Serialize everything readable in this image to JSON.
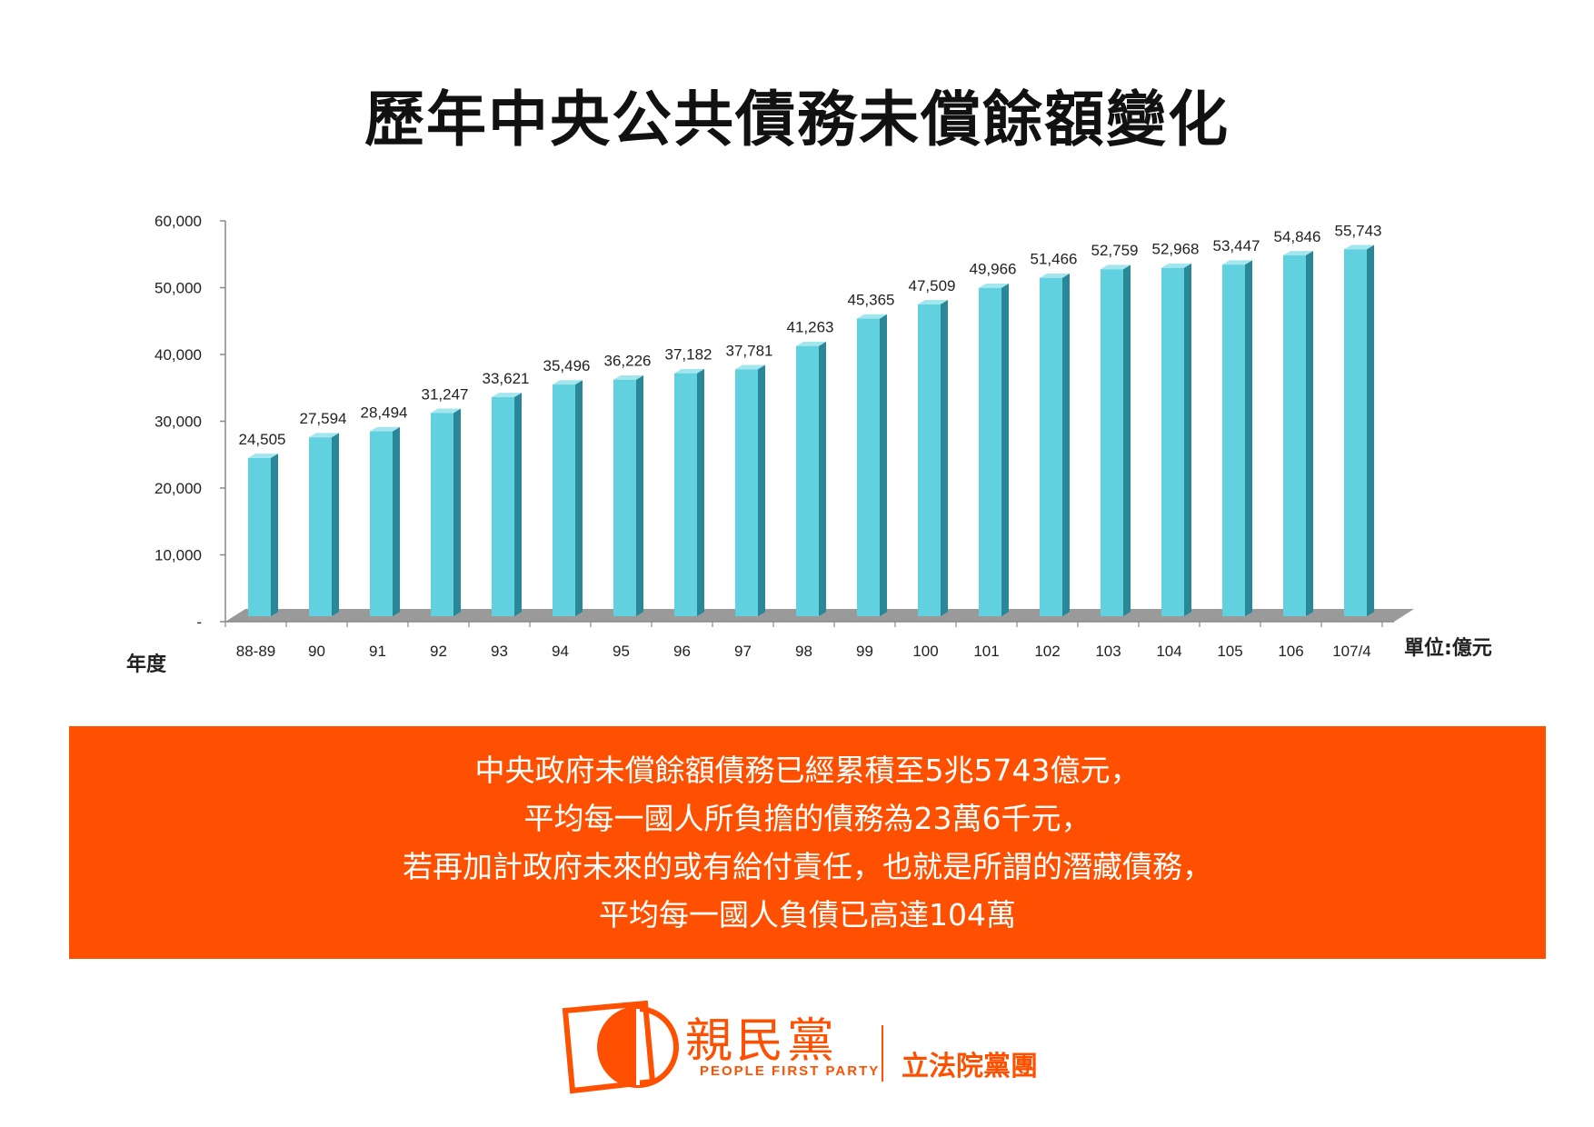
{
  "title": "歷年中央公共債務未償餘額變化",
  "chart_data": {
    "type": "bar",
    "categories": [
      "88-89",
      "90",
      "91",
      "92",
      "93",
      "94",
      "95",
      "96",
      "97",
      "98",
      "99",
      "100",
      "101",
      "102",
      "103",
      "104",
      "105",
      "106",
      "107/4"
    ],
    "values": [
      24505,
      27594,
      28494,
      31247,
      33621,
      35496,
      36226,
      37182,
      37781,
      41263,
      45365,
      47509,
      49966,
      51466,
      52759,
      52968,
      53447,
      54846,
      55743
    ],
    "value_labels": [
      "24,505",
      "27,594",
      "28,494",
      "31,247",
      "33,621",
      "35,496",
      "36,226",
      "37,182",
      "37,781",
      "41,263",
      "45,365",
      "47,509",
      "49,966",
      "51,466",
      "52,759",
      "52,968",
      "53,447",
      "54,846",
      "55,743"
    ],
    "y_ticks": [
      0,
      10000,
      20000,
      30000,
      40000,
      50000,
      60000
    ],
    "y_tick_labels": [
      "-",
      "10,000",
      "20,000",
      "30,000",
      "40,000",
      "50,000",
      "60,000"
    ],
    "ylim": [
      0,
      60000
    ],
    "xlabel": "年度",
    "unit_label": "單位:億元",
    "colors": {
      "bar_front": "#62d1df",
      "bar_side": "#2a8797",
      "bar_top": "#a4e6ee",
      "floor": "#9a9a9a"
    }
  },
  "banner": {
    "lines": [
      "中央政府未償餘額債務已經累積至5兆5743億元，",
      "平均每一國人所負擔的債務為23萬6千元，",
      "若再加計政府未來的或有給付責任，也就是所謂的潛藏債務，",
      "平均每一國人負債已高達104萬"
    ],
    "color": "#fe5000"
  },
  "footer": {
    "party_name": "親民黨",
    "party_english": "PEOPLE FIRST PARTY",
    "caucus": "立法院黨團",
    "brand_color": "#fe5000",
    "logo_icon": "people-first-party-logo-icon"
  }
}
